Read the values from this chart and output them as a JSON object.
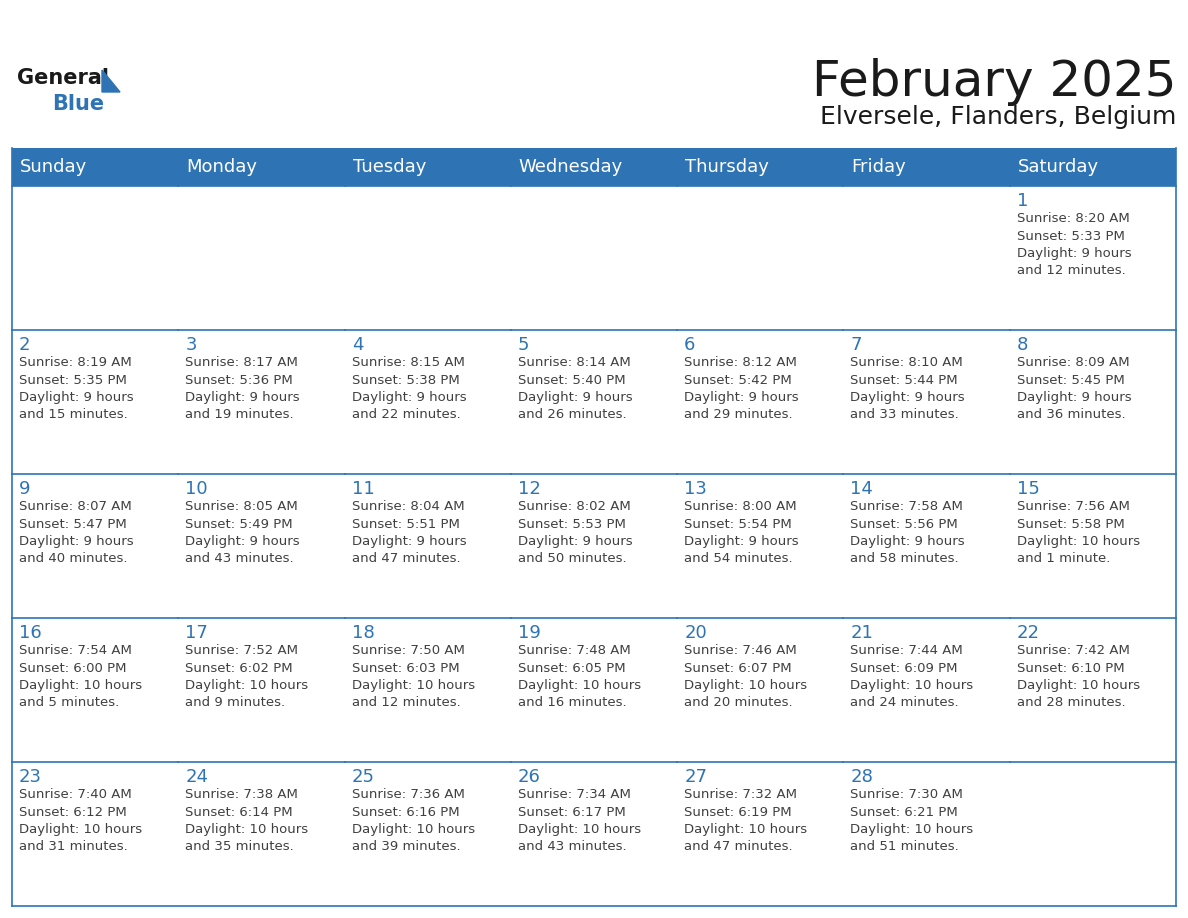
{
  "title": "February 2025",
  "subtitle": "Elversele, Flanders, Belgium",
  "header_bg": "#2E74B5",
  "header_text_color": "#FFFFFF",
  "cell_bg_even": "#F2F2F2",
  "cell_bg_odd": "#FFFFFF",
  "grid_color": "#2E74B5",
  "day_number_color": "#2E74B5",
  "info_text_color": "#404040",
  "days_of_week": [
    "Sunday",
    "Monday",
    "Tuesday",
    "Wednesday",
    "Thursday",
    "Friday",
    "Saturday"
  ],
  "weeks": [
    [
      {
        "day": "",
        "info": ""
      },
      {
        "day": "",
        "info": ""
      },
      {
        "day": "",
        "info": ""
      },
      {
        "day": "",
        "info": ""
      },
      {
        "day": "",
        "info": ""
      },
      {
        "day": "",
        "info": ""
      },
      {
        "day": "1",
        "info": "Sunrise: 8:20 AM\nSunset: 5:33 PM\nDaylight: 9 hours\nand 12 minutes."
      }
    ],
    [
      {
        "day": "2",
        "info": "Sunrise: 8:19 AM\nSunset: 5:35 PM\nDaylight: 9 hours\nand 15 minutes."
      },
      {
        "day": "3",
        "info": "Sunrise: 8:17 AM\nSunset: 5:36 PM\nDaylight: 9 hours\nand 19 minutes."
      },
      {
        "day": "4",
        "info": "Sunrise: 8:15 AM\nSunset: 5:38 PM\nDaylight: 9 hours\nand 22 minutes."
      },
      {
        "day": "5",
        "info": "Sunrise: 8:14 AM\nSunset: 5:40 PM\nDaylight: 9 hours\nand 26 minutes."
      },
      {
        "day": "6",
        "info": "Sunrise: 8:12 AM\nSunset: 5:42 PM\nDaylight: 9 hours\nand 29 minutes."
      },
      {
        "day": "7",
        "info": "Sunrise: 8:10 AM\nSunset: 5:44 PM\nDaylight: 9 hours\nand 33 minutes."
      },
      {
        "day": "8",
        "info": "Sunrise: 8:09 AM\nSunset: 5:45 PM\nDaylight: 9 hours\nand 36 minutes."
      }
    ],
    [
      {
        "day": "9",
        "info": "Sunrise: 8:07 AM\nSunset: 5:47 PM\nDaylight: 9 hours\nand 40 minutes."
      },
      {
        "day": "10",
        "info": "Sunrise: 8:05 AM\nSunset: 5:49 PM\nDaylight: 9 hours\nand 43 minutes."
      },
      {
        "day": "11",
        "info": "Sunrise: 8:04 AM\nSunset: 5:51 PM\nDaylight: 9 hours\nand 47 minutes."
      },
      {
        "day": "12",
        "info": "Sunrise: 8:02 AM\nSunset: 5:53 PM\nDaylight: 9 hours\nand 50 minutes."
      },
      {
        "day": "13",
        "info": "Sunrise: 8:00 AM\nSunset: 5:54 PM\nDaylight: 9 hours\nand 54 minutes."
      },
      {
        "day": "14",
        "info": "Sunrise: 7:58 AM\nSunset: 5:56 PM\nDaylight: 9 hours\nand 58 minutes."
      },
      {
        "day": "15",
        "info": "Sunrise: 7:56 AM\nSunset: 5:58 PM\nDaylight: 10 hours\nand 1 minute."
      }
    ],
    [
      {
        "day": "16",
        "info": "Sunrise: 7:54 AM\nSunset: 6:00 PM\nDaylight: 10 hours\nand 5 minutes."
      },
      {
        "day": "17",
        "info": "Sunrise: 7:52 AM\nSunset: 6:02 PM\nDaylight: 10 hours\nand 9 minutes."
      },
      {
        "day": "18",
        "info": "Sunrise: 7:50 AM\nSunset: 6:03 PM\nDaylight: 10 hours\nand 12 minutes."
      },
      {
        "day": "19",
        "info": "Sunrise: 7:48 AM\nSunset: 6:05 PM\nDaylight: 10 hours\nand 16 minutes."
      },
      {
        "day": "20",
        "info": "Sunrise: 7:46 AM\nSunset: 6:07 PM\nDaylight: 10 hours\nand 20 minutes."
      },
      {
        "day": "21",
        "info": "Sunrise: 7:44 AM\nSunset: 6:09 PM\nDaylight: 10 hours\nand 24 minutes."
      },
      {
        "day": "22",
        "info": "Sunrise: 7:42 AM\nSunset: 6:10 PM\nDaylight: 10 hours\nand 28 minutes."
      }
    ],
    [
      {
        "day": "23",
        "info": "Sunrise: 7:40 AM\nSunset: 6:12 PM\nDaylight: 10 hours\nand 31 minutes."
      },
      {
        "day": "24",
        "info": "Sunrise: 7:38 AM\nSunset: 6:14 PM\nDaylight: 10 hours\nand 35 minutes."
      },
      {
        "day": "25",
        "info": "Sunrise: 7:36 AM\nSunset: 6:16 PM\nDaylight: 10 hours\nand 39 minutes."
      },
      {
        "day": "26",
        "info": "Sunrise: 7:34 AM\nSunset: 6:17 PM\nDaylight: 10 hours\nand 43 minutes."
      },
      {
        "day": "27",
        "info": "Sunrise: 7:32 AM\nSunset: 6:19 PM\nDaylight: 10 hours\nand 47 minutes."
      },
      {
        "day": "28",
        "info": "Sunrise: 7:30 AM\nSunset: 6:21 PM\nDaylight: 10 hours\nand 51 minutes."
      },
      {
        "day": "",
        "info": ""
      }
    ]
  ],
  "logo_general_color": "#1a1a1a",
  "logo_blue_color": "#2E74B5",
  "title_fontsize": 36,
  "subtitle_fontsize": 18,
  "header_fontsize": 13,
  "day_number_fontsize": 13,
  "info_fontsize": 9.5
}
